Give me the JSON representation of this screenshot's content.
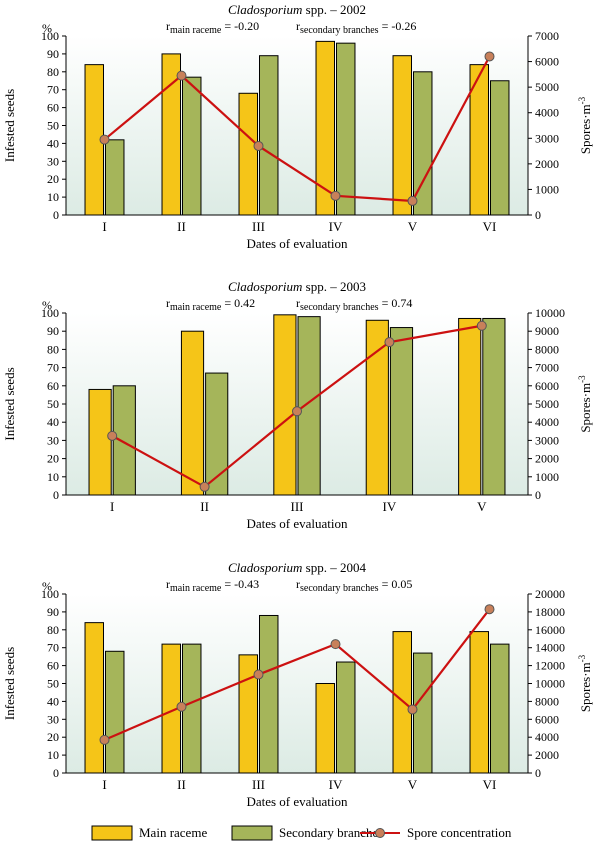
{
  "legend": {
    "main_raceme": "Main raceme",
    "secondary_branches": "Secondary branches",
    "spore_concentration": "Spore concentration"
  },
  "colors": {
    "main_raceme": "#f5c518",
    "secondary_branches": "#a5b55a",
    "spore_line": "#cc1111",
    "spore_marker": "#c8805a",
    "plot_bg_top": "#ffffff",
    "plot_bg_bottom": "#dfece6"
  },
  "chart_data": [
    {
      "type": "bar",
      "title_italic": "Cladosporium",
      "title_rest": " spp. – 2002",
      "r_main_sub": "main raceme",
      "r_main_value": " = -0.20",
      "r_sec_sub": "secondary branches",
      "r_sec_value": " = -0.26",
      "left_unit": "%",
      "ylabel": "Infested seeds",
      "ylabel_right": "Spores·m",
      "ylabel_right_sup": "-3",
      "xlabel": "Dates of evaluation",
      "categories": [
        "I",
        "II",
        "III",
        "IV",
        "V",
        "VI"
      ],
      "ylim": [
        0,
        100
      ],
      "yticks": [
        0,
        10,
        20,
        30,
        40,
        50,
        60,
        70,
        80,
        90,
        100
      ],
      "ylim_right": [
        0,
        7000
      ],
      "yticks_right": [
        0,
        1000,
        2000,
        3000,
        4000,
        5000,
        6000,
        7000
      ],
      "series": [
        {
          "name": "Main raceme",
          "values": [
            84,
            90,
            68,
            97,
            89,
            84
          ]
        },
        {
          "name": "Secondary branches",
          "values": [
            42,
            77,
            89,
            96,
            80,
            75
          ]
        }
      ],
      "line": {
        "name": "Spore concentration",
        "values": [
          2950,
          5450,
          2700,
          750,
          550,
          6200
        ]
      }
    },
    {
      "type": "bar",
      "title_italic": "Cladosporium",
      "title_rest": " spp. – 2003",
      "r_main_sub": "main raceme",
      "r_main_value": " = 0.42",
      "r_sec_sub": "secondary branches",
      "r_sec_value": " = 0.74",
      "left_unit": "%",
      "ylabel": "Infested seeds",
      "ylabel_right": "Spores·m",
      "ylabel_right_sup": "-3",
      "xlabel": "Dates of evaluation",
      "categories": [
        "I",
        "II",
        "III",
        "IV",
        "V"
      ],
      "ylim": [
        0,
        100
      ],
      "yticks": [
        0,
        10,
        20,
        30,
        40,
        50,
        60,
        70,
        80,
        90,
        100
      ],
      "ylim_right": [
        0,
        10000
      ],
      "yticks_right": [
        0,
        1000,
        2000,
        3000,
        4000,
        5000,
        6000,
        7000,
        8000,
        9000,
        10000
      ],
      "series": [
        {
          "name": "Main raceme",
          "values": [
            58,
            90,
            99,
            96,
            97
          ]
        },
        {
          "name": "Secondary branches",
          "values": [
            60,
            67,
            98,
            92,
            97
          ]
        }
      ],
      "line": {
        "name": "Spore concentration",
        "values": [
          3250,
          450,
          4600,
          8400,
          9300
        ]
      }
    },
    {
      "type": "bar",
      "title_italic": "Cladosporium",
      "title_rest": " spp. – 2004",
      "r_main_sub": "main raceme",
      "r_main_value": " = -0.43",
      "r_sec_sub": "secondary branches",
      "r_sec_value": " = 0.05",
      "left_unit": "%",
      "ylabel": "Infested seeds",
      "ylabel_right": "Spores·m",
      "ylabel_right_sup": "-3",
      "xlabel": "Dates of evaluation",
      "categories": [
        "I",
        "II",
        "III",
        "IV",
        "V",
        "VI"
      ],
      "ylim": [
        0,
        100
      ],
      "yticks": [
        0,
        10,
        20,
        30,
        40,
        50,
        60,
        70,
        80,
        90,
        100
      ],
      "ylim_right": [
        0,
        20000
      ],
      "yticks_right": [
        0,
        2000,
        4000,
        6000,
        8000,
        10000,
        12000,
        14000,
        16000,
        18000,
        20000
      ],
      "series": [
        {
          "name": "Main raceme",
          "values": [
            84,
            72,
            66,
            50,
            79,
            79
          ]
        },
        {
          "name": "Secondary branches",
          "values": [
            68,
            72,
            88,
            62,
            67,
            72
          ]
        }
      ],
      "line": {
        "name": "Spore concentration",
        "values": [
          3700,
          7400,
          11000,
          14400,
          7100,
          18300
        ]
      }
    }
  ]
}
